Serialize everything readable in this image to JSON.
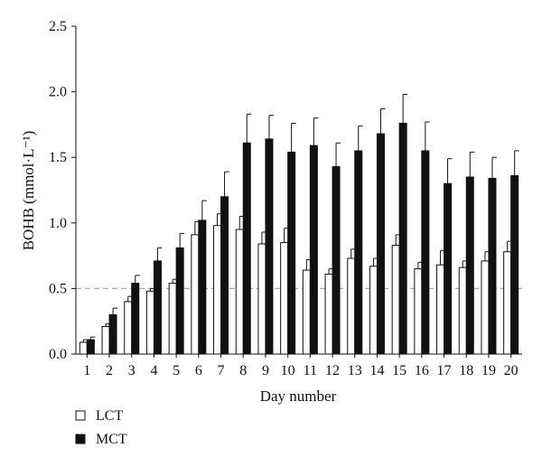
{
  "chart_data": {
    "type": "bar",
    "xlabel": "Day number",
    "ylabel": "BOHB (mmol·L⁻¹)",
    "ylim": [
      0,
      2.5
    ],
    "yticks": [
      "0.0",
      "0.5",
      "1.0",
      "1.5",
      "2.0",
      "2.5"
    ],
    "categories": [
      "1",
      "2",
      "3",
      "4",
      "5",
      "6",
      "7",
      "8",
      "9",
      "10",
      "11",
      "12",
      "13",
      "14",
      "15",
      "16",
      "17",
      "18",
      "19",
      "20"
    ],
    "reference_line": {
      "y": 0.5,
      "style": "dashed"
    },
    "grid": false,
    "legend_position": "bottom-left",
    "series": [
      {
        "name": "LCT",
        "fill": "#ffffff",
        "stroke": "#111111",
        "values": [
          0.09,
          0.21,
          0.4,
          0.48,
          0.54,
          0.91,
          0.98,
          0.95,
          0.84,
          0.85,
          0.64,
          0.61,
          0.73,
          0.67,
          0.83,
          0.65,
          0.68,
          0.66,
          0.71,
          0.78
        ],
        "errors": [
          0.02,
          0.02,
          0.04,
          0.02,
          0.03,
          0.1,
          0.09,
          0.1,
          0.09,
          0.11,
          0.08,
          0.04,
          0.07,
          0.06,
          0.08,
          0.05,
          0.11,
          0.05,
          0.07,
          0.08
        ]
      },
      {
        "name": "MCT",
        "fill": "#111111",
        "stroke": "#111111",
        "values": [
          0.11,
          0.3,
          0.54,
          0.71,
          0.81,
          1.02,
          1.2,
          1.61,
          1.64,
          1.54,
          1.59,
          1.43,
          1.55,
          1.68,
          1.76,
          1.55,
          1.3,
          1.35,
          1.34,
          1.36
        ],
        "errors": [
          0.02,
          0.05,
          0.06,
          0.1,
          0.11,
          0.15,
          0.19,
          0.22,
          0.18,
          0.22,
          0.21,
          0.18,
          0.19,
          0.19,
          0.22,
          0.22,
          0.19,
          0.19,
          0.16,
          0.19
        ]
      }
    ]
  }
}
